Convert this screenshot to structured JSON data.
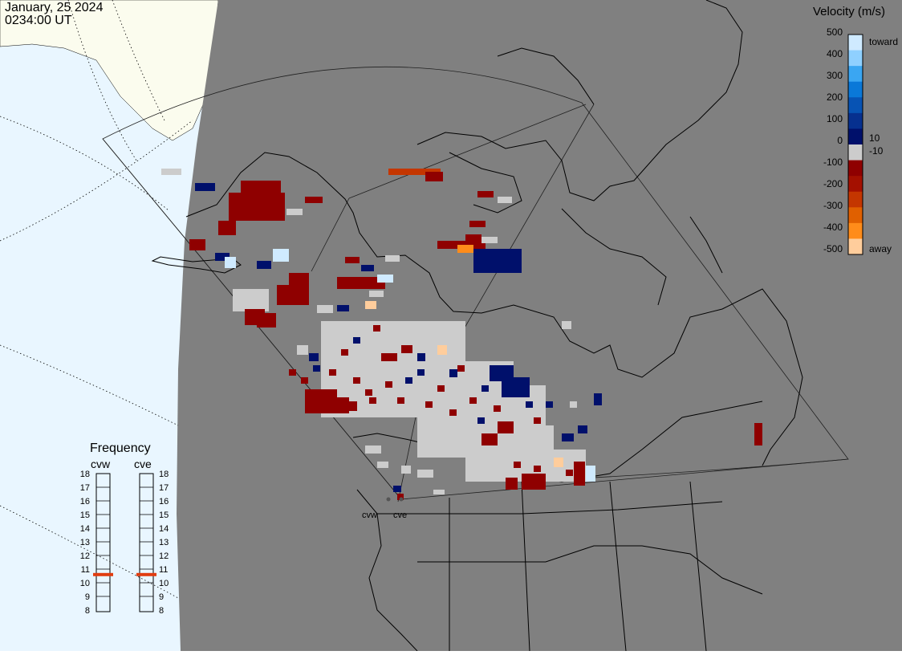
{
  "header": {
    "date": "January, 25 2024",
    "time": "0234:00 UT"
  },
  "velocity_scale": {
    "title": "Velocity (m/s)",
    "ticks": [
      "500",
      "400",
      "300",
      "200",
      "100",
      "0",
      "-100",
      "-200",
      "-300",
      "-400",
      "-500"
    ],
    "inner_ticks": [
      "10",
      "-10"
    ],
    "toward_label": "toward",
    "away_label": "away",
    "colors_top_to_bottom": [
      "#cfeaff",
      "#8fd0ff",
      "#3aa6f2",
      "#0a78d8",
      "#0753b4",
      "#06308f",
      "#00106b",
      "#cccccc",
      "#8f0000",
      "#a41000",
      "#c43600",
      "#e06000",
      "#ff8c1a",
      "#ffcd9c"
    ]
  },
  "frequency": {
    "title": "Frequency",
    "radars": [
      {
        "name": "cvw",
        "value_mhz": 10.6
      },
      {
        "name": "cve",
        "value_mhz": 10.6
      }
    ],
    "ticks": [
      "18",
      "17",
      "16",
      "15",
      "14",
      "13",
      "12",
      "11",
      "10",
      "9",
      "8"
    ],
    "range": [
      8,
      18
    ]
  },
  "radar_sites": [
    {
      "name": "cvw"
    },
    {
      "name": "cve"
    }
  ],
  "colors": {
    "ocean": "#e9f6ff",
    "ice": "#fbfcee",
    "night": "#808080",
    "low_velocity": "#cccccc",
    "frequency_marker": "#e03c10"
  }
}
